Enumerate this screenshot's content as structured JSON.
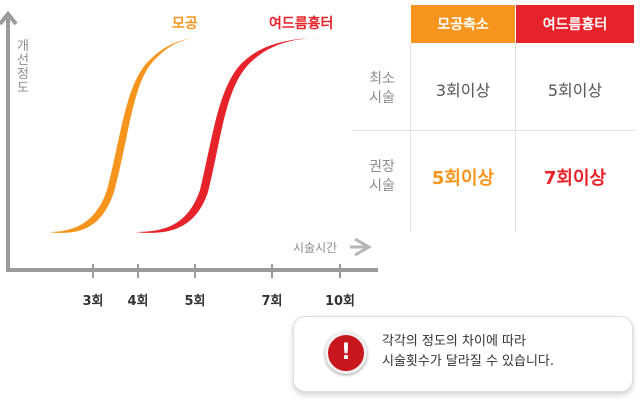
{
  "chart": {
    "y_axis_label": "개선정도",
    "x_axis_label": "시술시간",
    "series": [
      {
        "name": "모공",
        "color": "#f7941d"
      },
      {
        "name": "여드름흉터",
        "color": "#e6232a"
      }
    ],
    "x_ticks": [
      "3회",
      "4회",
      "5회",
      "7회",
      "10회"
    ]
  },
  "table": {
    "headers": [
      {
        "label": "모공축소",
        "color": "#f7941d"
      },
      {
        "label": "여드름흉터",
        "color": "#e6232a"
      }
    ],
    "rows": [
      {
        "label": "최소\n시술",
        "values": [
          "3회이상",
          "5회이상"
        ]
      },
      {
        "label": "권장\n시술",
        "values": [
          "5회이상",
          "7회이상"
        ]
      }
    ]
  },
  "notice": {
    "icon": "exclamation-icon",
    "line1": "각각의 정도의 차이에 따라",
    "line2": "시술횟수가 달라질 수 있습니다."
  }
}
